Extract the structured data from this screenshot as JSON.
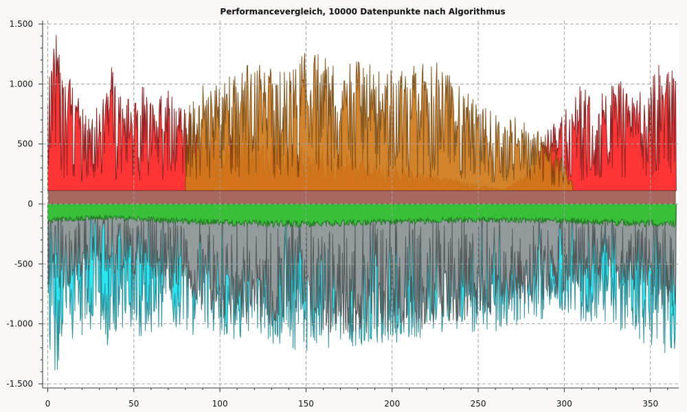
{
  "chart_data": {
    "type": "area",
    "title": "Performancevergleich, 10000 Datenpunkte nach Algorithmus",
    "xlabel": "",
    "ylabel": "",
    "xlim": [
      -0.5,
      365.5
    ],
    "ylim": [
      -1500,
      1500
    ],
    "x_ticks": [
      0,
      50,
      100,
      150,
      200,
      250,
      300,
      350
    ],
    "x_tick_labels": [
      "0",
      "50",
      "100",
      "150",
      "200",
      "250",
      "300",
      "350"
    ],
    "y_ticks": [
      1500,
      1000,
      500,
      0,
      -500,
      -1000,
      -1500
    ],
    "y_tick_labels": [
      "1.500",
      "1.000",
      "500",
      "0",
      "-500",
      "-1.000",
      "-1.500"
    ],
    "grid": true,
    "legend": "none",
    "baseline_band": [
      0,
      110
    ],
    "band_color": "#a86860",
    "series": [
      {
        "fill": "#ff2a2a",
        "stroke": "#8b1a1a",
        "envelope": [
          [
            0,
            1200
          ],
          [
            5,
            1450
          ],
          [
            10,
            1000
          ],
          [
            15,
            1080
          ],
          [
            20,
            800
          ],
          [
            25,
            700
          ],
          [
            30,
            860
          ],
          [
            35,
            1260
          ],
          [
            40,
            1000
          ],
          [
            45,
            860
          ],
          [
            50,
            920
          ],
          [
            55,
            1020
          ],
          [
            60,
            840
          ],
          [
            65,
            900
          ],
          [
            70,
            960
          ],
          [
            75,
            860
          ],
          [
            80,
            820
          ],
          [
            85,
            700
          ],
          [
            90,
            620
          ],
          [
            95,
            620
          ],
          [
            100,
            640
          ],
          [
            265,
            120
          ],
          [
            280,
            300
          ],
          [
            290,
            620
          ],
          [
            300,
            780
          ],
          [
            310,
            1000
          ],
          [
            320,
            900
          ],
          [
            330,
            1100
          ],
          [
            340,
            900
          ],
          [
            350,
            1000
          ],
          [
            355,
            1200
          ],
          [
            360,
            1100
          ],
          [
            365,
            1300
          ]
        ]
      },
      {
        "fill": "#d07a1a",
        "stroke": "#7a4a10",
        "envelope": [
          [
            80,
            820
          ],
          [
            90,
            1000
          ],
          [
            100,
            1020
          ],
          [
            110,
            1140
          ],
          [
            120,
            1200
          ],
          [
            130,
            1150
          ],
          [
            140,
            1120
          ],
          [
            150,
            1280
          ],
          [
            160,
            1240
          ],
          [
            170,
            1140
          ],
          [
            180,
            1200
          ],
          [
            190,
            1150
          ],
          [
            200,
            1160
          ],
          [
            210,
            1160
          ],
          [
            220,
            1180
          ],
          [
            230,
            1180
          ],
          [
            240,
            1000
          ],
          [
            250,
            840
          ],
          [
            260,
            750
          ],
          [
            270,
            740
          ],
          [
            280,
            700
          ],
          [
            290,
            560
          ],
          [
            300,
            360
          ],
          [
            305,
            150
          ]
        ]
      },
      {
        "fill": "#33c233",
        "stroke": "#1e7a1e",
        "envelope": [
          [
            0,
            -150
          ],
          [
            30,
            -120
          ],
          [
            60,
            -140
          ],
          [
            100,
            -170
          ],
          [
            150,
            -180
          ],
          [
            200,
            -160
          ],
          [
            250,
            -140
          ],
          [
            300,
            -150
          ],
          [
            330,
            -170
          ],
          [
            365,
            -180
          ]
        ]
      },
      {
        "fill": "#999999",
        "stroke": "#555555",
        "envelope": [
          [
            0,
            -700
          ],
          [
            10,
            -720
          ],
          [
            20,
            -600
          ],
          [
            30,
            -560
          ],
          [
            40,
            -600
          ],
          [
            50,
            -640
          ],
          [
            60,
            -600
          ],
          [
            70,
            -740
          ],
          [
            80,
            -760
          ],
          [
            90,
            -920
          ],
          [
            100,
            -1000
          ],
          [
            120,
            -1000
          ],
          [
            140,
            -1060
          ],
          [
            160,
            -1080
          ],
          [
            180,
            -1100
          ],
          [
            200,
            -1080
          ],
          [
            220,
            -1040
          ],
          [
            240,
            -980
          ],
          [
            260,
            -920
          ],
          [
            280,
            -820
          ],
          [
            300,
            -760
          ],
          [
            320,
            -700
          ],
          [
            340,
            -720
          ],
          [
            350,
            -820
          ],
          [
            365,
            -880
          ]
        ]
      },
      {
        "fill": "#1ce6f2",
        "stroke": "#1f8a95",
        "envelope": [
          [
            0,
            -1300
          ],
          [
            5,
            -1450
          ],
          [
            10,
            -1150
          ],
          [
            20,
            -1100
          ],
          [
            30,
            -1050
          ],
          [
            35,
            -1250
          ],
          [
            40,
            -1100
          ],
          [
            50,
            -1120
          ],
          [
            60,
            -1080
          ],
          [
            70,
            -1100
          ],
          [
            80,
            -1150
          ],
          [
            90,
            -1060
          ],
          [
            100,
            -1120
          ],
          [
            120,
            -1180
          ],
          [
            140,
            -1200
          ],
          [
            150,
            -1250
          ],
          [
            160,
            -1220
          ],
          [
            180,
            -1180
          ],
          [
            200,
            -1160
          ],
          [
            220,
            -1120
          ],
          [
            240,
            -1100
          ],
          [
            260,
            -1060
          ],
          [
            280,
            -1000
          ],
          [
            300,
            -960
          ],
          [
            320,
            -1000
          ],
          [
            340,
            -1100
          ],
          [
            350,
            -1200
          ],
          [
            360,
            -1250
          ],
          [
            365,
            -1320
          ]
        ]
      }
    ]
  }
}
